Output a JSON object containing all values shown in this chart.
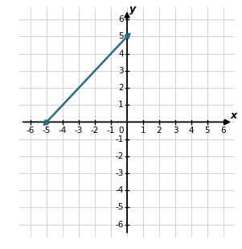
{
  "xlim": [
    -6.7,
    6.7
  ],
  "ylim": [
    -6.7,
    6.7
  ],
  "xticks": [
    -6,
    -5,
    -4,
    -3,
    -2,
    -1,
    1,
    2,
    3,
    4,
    5,
    6
  ],
  "yticks": [
    -6,
    -5,
    -4,
    -3,
    -2,
    -1,
    1,
    2,
    3,
    4,
    5,
    6
  ],
  "xlabel": "x",
  "ylabel": "y",
  "line_color": "#2a6b7c",
  "line_x1": -5.35,
  "line_y1": -0.35,
  "line_x2": 0.35,
  "line_y2": 5.35,
  "grid_color": "#cccccc",
  "background_color": "#ffffff",
  "axis_color": "#000000",
  "figsize": [
    3.01,
    3.09
  ],
  "dpi": 100,
  "tick_fontsize": 7.5
}
